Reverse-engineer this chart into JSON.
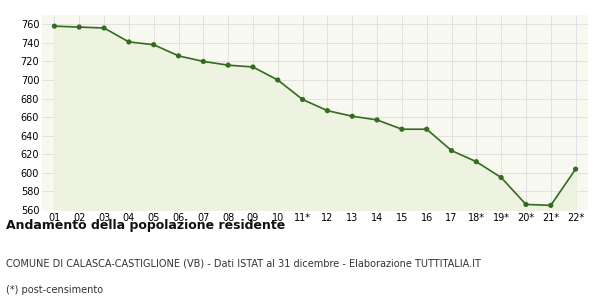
{
  "x_labels": [
    "01",
    "02",
    "03",
    "04",
    "05",
    "06",
    "07",
    "08",
    "09",
    "10",
    "11*",
    "12",
    "13",
    "14",
    "15",
    "16",
    "17",
    "18*",
    "19*",
    "20*",
    "21*",
    "22*"
  ],
  "y_values": [
    758,
    757,
    756,
    741,
    738,
    726,
    720,
    716,
    714,
    700,
    679,
    667,
    661,
    657,
    647,
    647,
    624,
    612,
    595,
    566,
    565,
    604
  ],
  "ylim": [
    560,
    770
  ],
  "yticks": [
    560,
    580,
    600,
    620,
    640,
    660,
    680,
    700,
    720,
    740,
    760
  ],
  "line_color": "#336b1f",
  "fill_color": "#eef2e0",
  "marker_color": "#336b1f",
  "bg_color": "#ffffff",
  "plot_bg_color": "#f7f8f0",
  "grid_color": "#d8d8d8",
  "title": "Andamento della popolazione residente",
  "subtitle": "COMUNE DI CALASCA-CASTIGLIONE (VB) - Dati ISTAT al 31 dicembre - Elaborazione TUTTITALIA.IT",
  "footnote": "(*) post-censimento",
  "title_fontsize": 9,
  "subtitle_fontsize": 7,
  "footnote_fontsize": 7,
  "tick_fontsize": 7
}
